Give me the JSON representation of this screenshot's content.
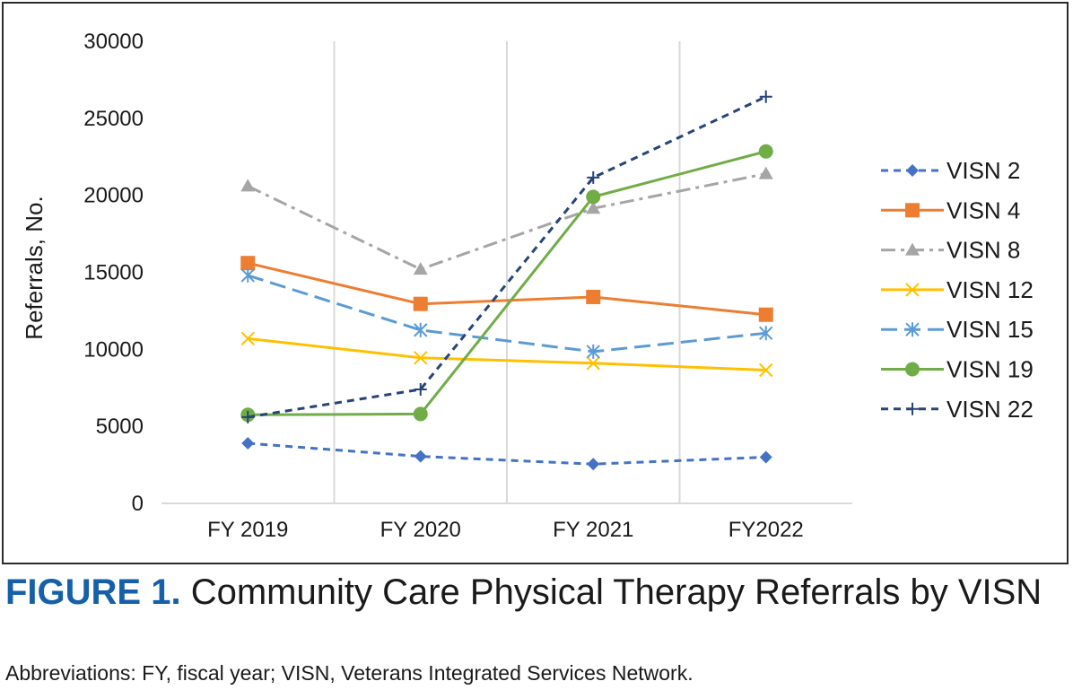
{
  "chart_data": {
    "type": "line",
    "title": "",
    "xlabel": "",
    "ylabel": "Referrals, No.",
    "ylim": [
      0,
      30000
    ],
    "yticks": [
      "0",
      "5000",
      "10000",
      "15000",
      "20000",
      "25000",
      "30000"
    ],
    "ytick_values": [
      0,
      5000,
      10000,
      15000,
      20000,
      25000,
      30000
    ],
    "categories": [
      "FY 2019",
      "FY 2020",
      "FY 2021",
      "FY2022"
    ],
    "grid": "vertical",
    "legend_position": "right",
    "series": [
      {
        "name": "VISN 2",
        "values": [
          3900,
          3050,
          2550,
          3000
        ],
        "color": "#4472c4",
        "dash": "dash",
        "marker": "diamond"
      },
      {
        "name": "VISN 4",
        "values": [
          15600,
          12950,
          13400,
          12250
        ],
        "color": "#ed7d31",
        "dash": "solid",
        "marker": "square"
      },
      {
        "name": "VISN 8",
        "values": [
          20600,
          15200,
          19150,
          21400
        ],
        "color": "#a5a5a5",
        "dash": "dashdot",
        "marker": "triangle"
      },
      {
        "name": "VISN 12",
        "values": [
          10700,
          9450,
          9100,
          8650
        ],
        "color": "#ffc000",
        "dash": "solid",
        "marker": "x"
      },
      {
        "name": "VISN 15",
        "values": [
          14800,
          11250,
          9850,
          11050
        ],
        "color": "#5b9bd5",
        "dash": "longdash",
        "marker": "asterisk"
      },
      {
        "name": "VISN 19",
        "values": [
          5750,
          5800,
          19900,
          22850
        ],
        "color": "#70ad47",
        "dash": "solid",
        "marker": "circle"
      },
      {
        "name": "VISN 22",
        "values": [
          5600,
          7400,
          21150,
          26400
        ],
        "color": "#264478",
        "dash": "dash",
        "marker": "plus"
      }
    ]
  },
  "caption": {
    "figure_label": "FIGURE 1.",
    "title": "Community Care Physical Therapy Referrals by VISN",
    "abbreviations": "Abbreviations: FY, fiscal year; VISN, Veterans Integrated Services Network."
  }
}
